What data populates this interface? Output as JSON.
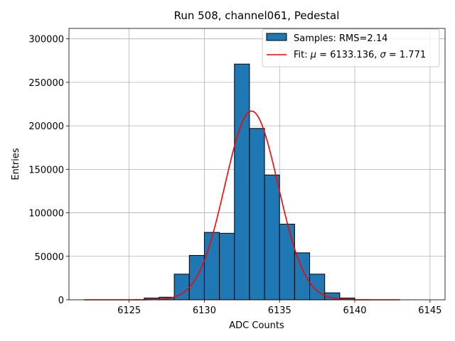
{
  "chart_data": {
    "type": "bar",
    "title": "Run 508, channel061, Pedestal",
    "xlabel": "ADC Counts",
    "ylabel": "Entries",
    "xlim": [
      6121,
      6146
    ],
    "ylim": [
      0,
      312000
    ],
    "xticks": [
      6125,
      6130,
      6135,
      6140,
      6145
    ],
    "yticks": [
      0,
      50000,
      100000,
      150000,
      200000,
      250000,
      300000
    ],
    "grid": true,
    "legend_position": "top-right",
    "colors": {
      "bar": "#1f77b4",
      "fit": "#ff0000",
      "edge": "#000000"
    },
    "histogram": {
      "name": "Samples: RMS=2.14",
      "bins": [
        {
          "start": 6126,
          "end": 6127,
          "value": 2000
        },
        {
          "start": 6127,
          "end": 6128,
          "value": 3000
        },
        {
          "start": 6128,
          "end": 6129,
          "value": 29500
        },
        {
          "start": 6129,
          "end": 6130,
          "value": 51000
        },
        {
          "start": 6130,
          "end": 6131,
          "value": 77500
        },
        {
          "start": 6131,
          "end": 6132,
          "value": 76500
        },
        {
          "start": 6132,
          "end": 6133,
          "value": 271000
        },
        {
          "start": 6133,
          "end": 6134,
          "value": 197000
        },
        {
          "start": 6134,
          "end": 6135,
          "value": 143500
        },
        {
          "start": 6135,
          "end": 6136,
          "value": 87000
        },
        {
          "start": 6136,
          "end": 6137,
          "value": 54000
        },
        {
          "start": 6137,
          "end": 6138,
          "value": 29500
        },
        {
          "start": 6138,
          "end": 6139,
          "value": 8000
        },
        {
          "start": 6139,
          "end": 6140,
          "value": 2000
        }
      ]
    },
    "fit": {
      "name": "Fit: μ = 6133.136, σ = 1.771",
      "label_parts": [
        "Fit: ",
        "μ",
        " = 6133.136, ",
        "σ",
        " = 1.771"
      ],
      "mu": 6133.136,
      "sigma": 1.771,
      "amplitude": 217000,
      "x_range": [
        6122,
        6143
      ]
    }
  }
}
